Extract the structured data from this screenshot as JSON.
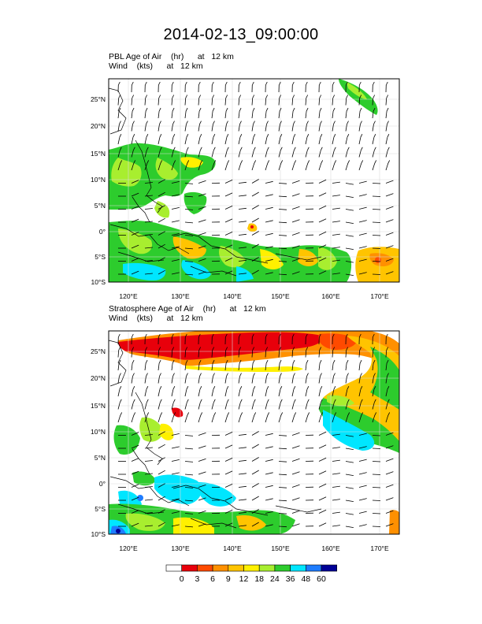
{
  "title": "2014-02-13_09:00:00",
  "panels": [
    {
      "id": "pbl",
      "title_line1": "PBL Age of Air    (hr)      at   12 km",
      "title_line2": "Wind    (kts)      at   12 km"
    },
    {
      "id": "strat",
      "title_line1": "Stratosphere Age of Air    (hr)      at   12 km",
      "title_line2": "Wind    (kts)      at   12 km"
    }
  ],
  "axes": {
    "lon_labels": [
      "120°E",
      "130°E",
      "140°E",
      "150°E",
      "160°E",
      "170°E"
    ],
    "lat_labels": [
      "25°N",
      "20°N",
      "15°N",
      "10°N",
      "5°N",
      "0°",
      "5°S",
      "10°S"
    ],
    "lon_range": [
      116.5,
      173.5
    ],
    "lat_range": [
      -10,
      29
    ]
  },
  "colorbar": {
    "labels": [
      "0",
      "3",
      "6",
      "9",
      "12",
      "18",
      "24",
      "36",
      "48",
      "60"
    ],
    "colors": [
      "#ffffff",
      "#e8000b",
      "#ff4a00",
      "#ff9000",
      "#ffc400",
      "#fff000",
      "#a8ee2f",
      "#2dcc2d",
      "#00e6ff",
      "#1e7cff",
      "#000096"
    ]
  }
}
